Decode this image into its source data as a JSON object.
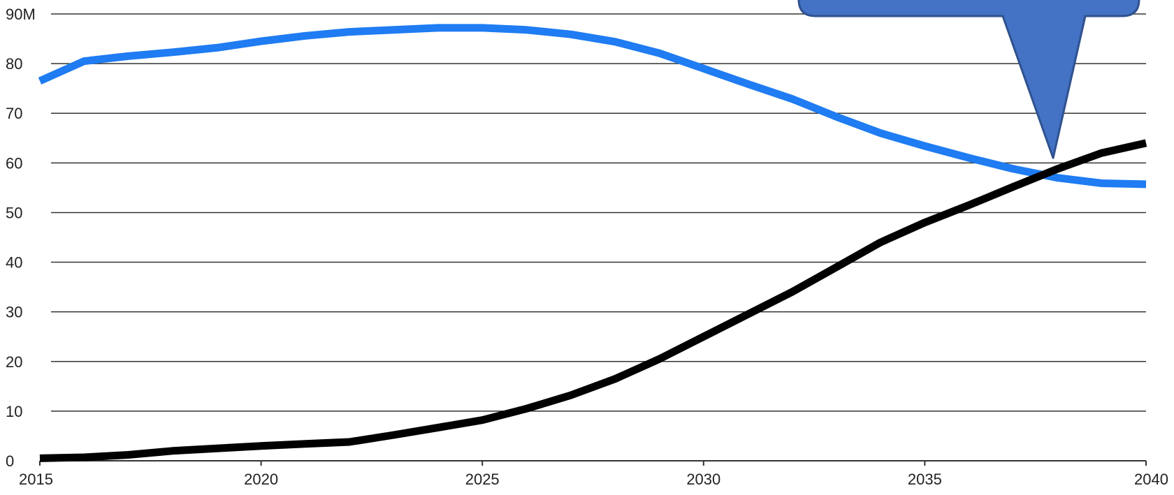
{
  "chart_data": {
    "type": "line",
    "title": "",
    "xlabel": "",
    "ylabel": "",
    "xlim": [
      2015,
      2040
    ],
    "ylim": [
      0,
      90
    ],
    "grid": true,
    "x_ticks": [
      "2015",
      "2020",
      "2025",
      "2030",
      "2035",
      "2040"
    ],
    "y_ticks": [
      {
        "value": 0,
        "label": "0"
      },
      {
        "value": 10,
        "label": "10"
      },
      {
        "value": 20,
        "label": "20"
      },
      {
        "value": 30,
        "label": "30"
      },
      {
        "value": 40,
        "label": "40"
      },
      {
        "value": 50,
        "label": "50"
      },
      {
        "value": 60,
        "label": "60"
      },
      {
        "value": 70,
        "label": "70"
      },
      {
        "value": 80,
        "label": "80"
      },
      {
        "value": 90,
        "label": "90M"
      }
    ],
    "x": [
      2015,
      2016,
      2017,
      2018,
      2019,
      2020,
      2021,
      2022,
      2023,
      2024,
      2025,
      2026,
      2027,
      2028,
      2029,
      2030,
      2031,
      2032,
      2033,
      2034,
      2035,
      2036,
      2037,
      2038,
      2039,
      2040
    ],
    "series": [
      {
        "color": "#1f7cf2",
        "values": [
          76.5,
          80.5,
          81.5,
          82.3,
          83.2,
          84.5,
          85.6,
          86.4,
          86.8,
          87.2,
          87.2,
          86.8,
          85.9,
          84.4,
          82.1,
          79.0,
          75.9,
          72.9,
          69.3,
          66.0,
          63.4,
          61.0,
          58.8,
          57.0,
          55.9,
          55.7
        ]
      },
      {
        "color": "#000000",
        "values": [
          0.5,
          0.7,
          1.2,
          2.0,
          2.5,
          3.0,
          3.4,
          3.8,
          5.2,
          6.7,
          8.2,
          10.5,
          13.2,
          16.5,
          20.5,
          25.0,
          29.5,
          34.0,
          39.0,
          44.0,
          48.0,
          51.5,
          55.2,
          58.8,
          62.0,
          64.0
        ]
      }
    ],
    "annotations": [
      {
        "type": "callout",
        "text": "",
        "color": "#4472c4",
        "points_to": {
          "x": 2037.9,
          "y": 61
        }
      }
    ]
  }
}
